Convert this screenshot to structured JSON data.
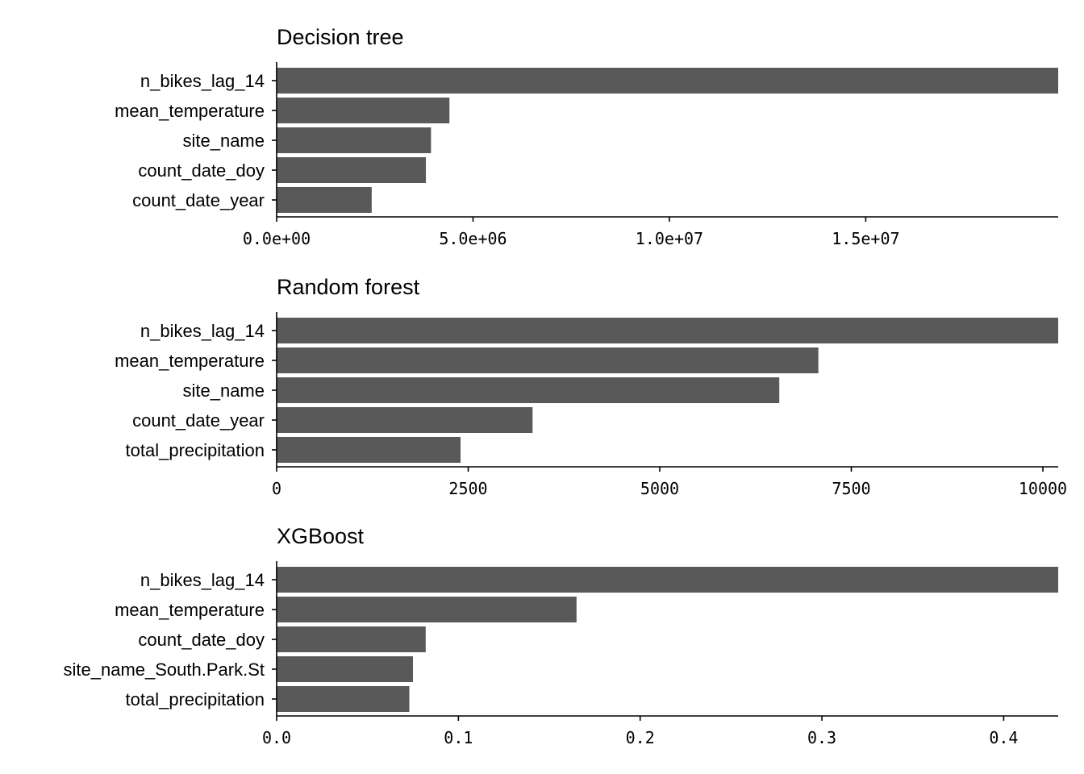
{
  "chart_data": [
    {
      "type": "bar",
      "orientation": "horizontal",
      "title": "Decision tree",
      "xlabel": "",
      "ylabel": "",
      "categories": [
        "n_bikes_lag_14",
        "mean_temperature",
        "site_name",
        "count_date_doy",
        "count_date_year"
      ],
      "values": [
        19900000,
        4400000,
        3930000,
        3800000,
        2420000
      ],
      "xlim": [
        0,
        19900000
      ],
      "xticks": [
        0,
        5000000,
        10000000,
        15000000
      ],
      "xtick_labels": [
        "0.0e+00",
        "5.0e+06",
        "1.0e+07",
        "1.5e+07"
      ],
      "grid": false,
      "bar_color": "#595959"
    },
    {
      "type": "bar",
      "orientation": "horizontal",
      "title": "Random forest",
      "xlabel": "",
      "ylabel": "",
      "categories": [
        "n_bikes_lag_14",
        "mean_temperature",
        "site_name",
        "count_date_year",
        "total_precipitation"
      ],
      "values": [
        10200,
        7070,
        6560,
        3340,
        2400
      ],
      "xlim": [
        0,
        10200
      ],
      "xticks": [
        0,
        2500,
        5000,
        7500,
        10000
      ],
      "xtick_labels": [
        "0",
        "2500",
        "5000",
        "7500",
        "10000"
      ],
      "grid": false,
      "bar_color": "#595959"
    },
    {
      "type": "bar",
      "orientation": "horizontal",
      "title": "XGBoost",
      "xlabel": "",
      "ylabel": "",
      "categories": [
        "n_bikes_lag_14",
        "mean_temperature",
        "count_date_doy",
        "site_name_South.Park.St",
        "total_precipitation"
      ],
      "values": [
        0.43,
        0.165,
        0.082,
        0.075,
        0.073
      ],
      "xlim": [
        0,
        0.43
      ],
      "xticks": [
        0,
        0.1,
        0.2,
        0.3,
        0.4
      ],
      "xtick_labels": [
        "0.0",
        "0.1",
        "0.2",
        "0.3",
        "0.4"
      ],
      "grid": false,
      "bar_color": "#595959"
    }
  ]
}
